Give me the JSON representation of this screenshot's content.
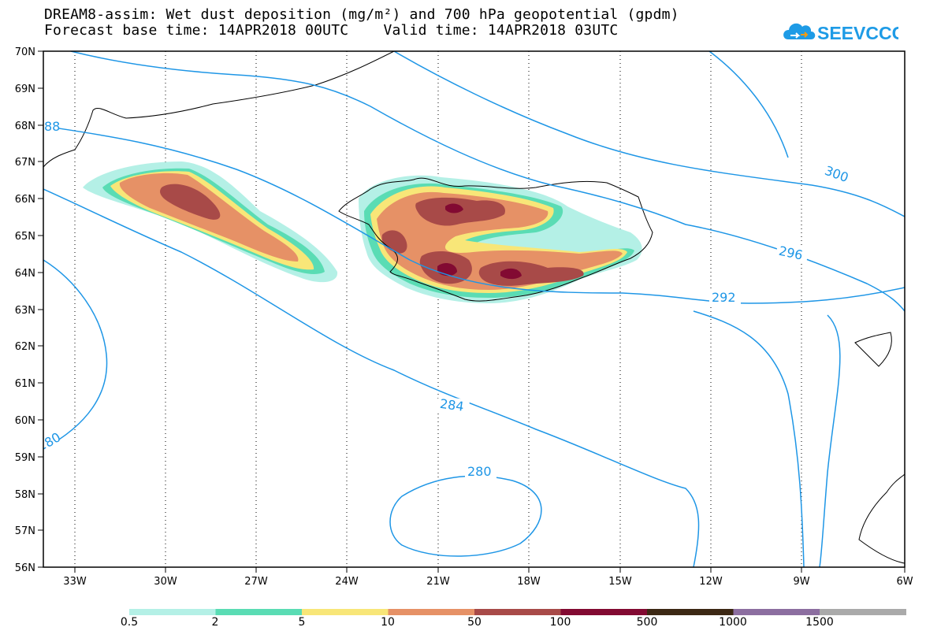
{
  "title": {
    "line1": "DREAM8-assim: Wet dust deposition (mg/m²) and 700 hPa geopotential (gpdm)",
    "line2": "Forecast base time: 14APR2018 00UTC    Valid time: 14APR2018 03UTC"
  },
  "logo": {
    "text": "SEEVCCC",
    "icon": "cloud-icon",
    "color": "#1e9be6"
  },
  "map": {
    "lat_labels": [
      "70N",
      "69N",
      "68N",
      "67N",
      "66N",
      "65N",
      "64N",
      "63N",
      "62N",
      "61N",
      "60N",
      "59N",
      "58N",
      "57N",
      "56N"
    ],
    "lon_labels": [
      "33W",
      "30W",
      "27W",
      "24W",
      "21W",
      "18W",
      "15W",
      "12W",
      "9W",
      "6W"
    ],
    "gridlines": "dotted",
    "contour_color": "#1e96e6",
    "contour_labels": [
      "88",
      "300",
      "296",
      "292",
      "284",
      "280",
      "80"
    ]
  },
  "legend": {
    "colors": [
      "#b4f0e6",
      "#5adcb4",
      "#f8e678",
      "#e69166",
      "#a84a48",
      "#820a32",
      "#3c2814",
      "#8c6ea0",
      "#aaaaaa"
    ],
    "ticks": [
      "0.5",
      "2",
      "5",
      "10",
      "50",
      "100",
      "500",
      "1000",
      "1500"
    ]
  }
}
